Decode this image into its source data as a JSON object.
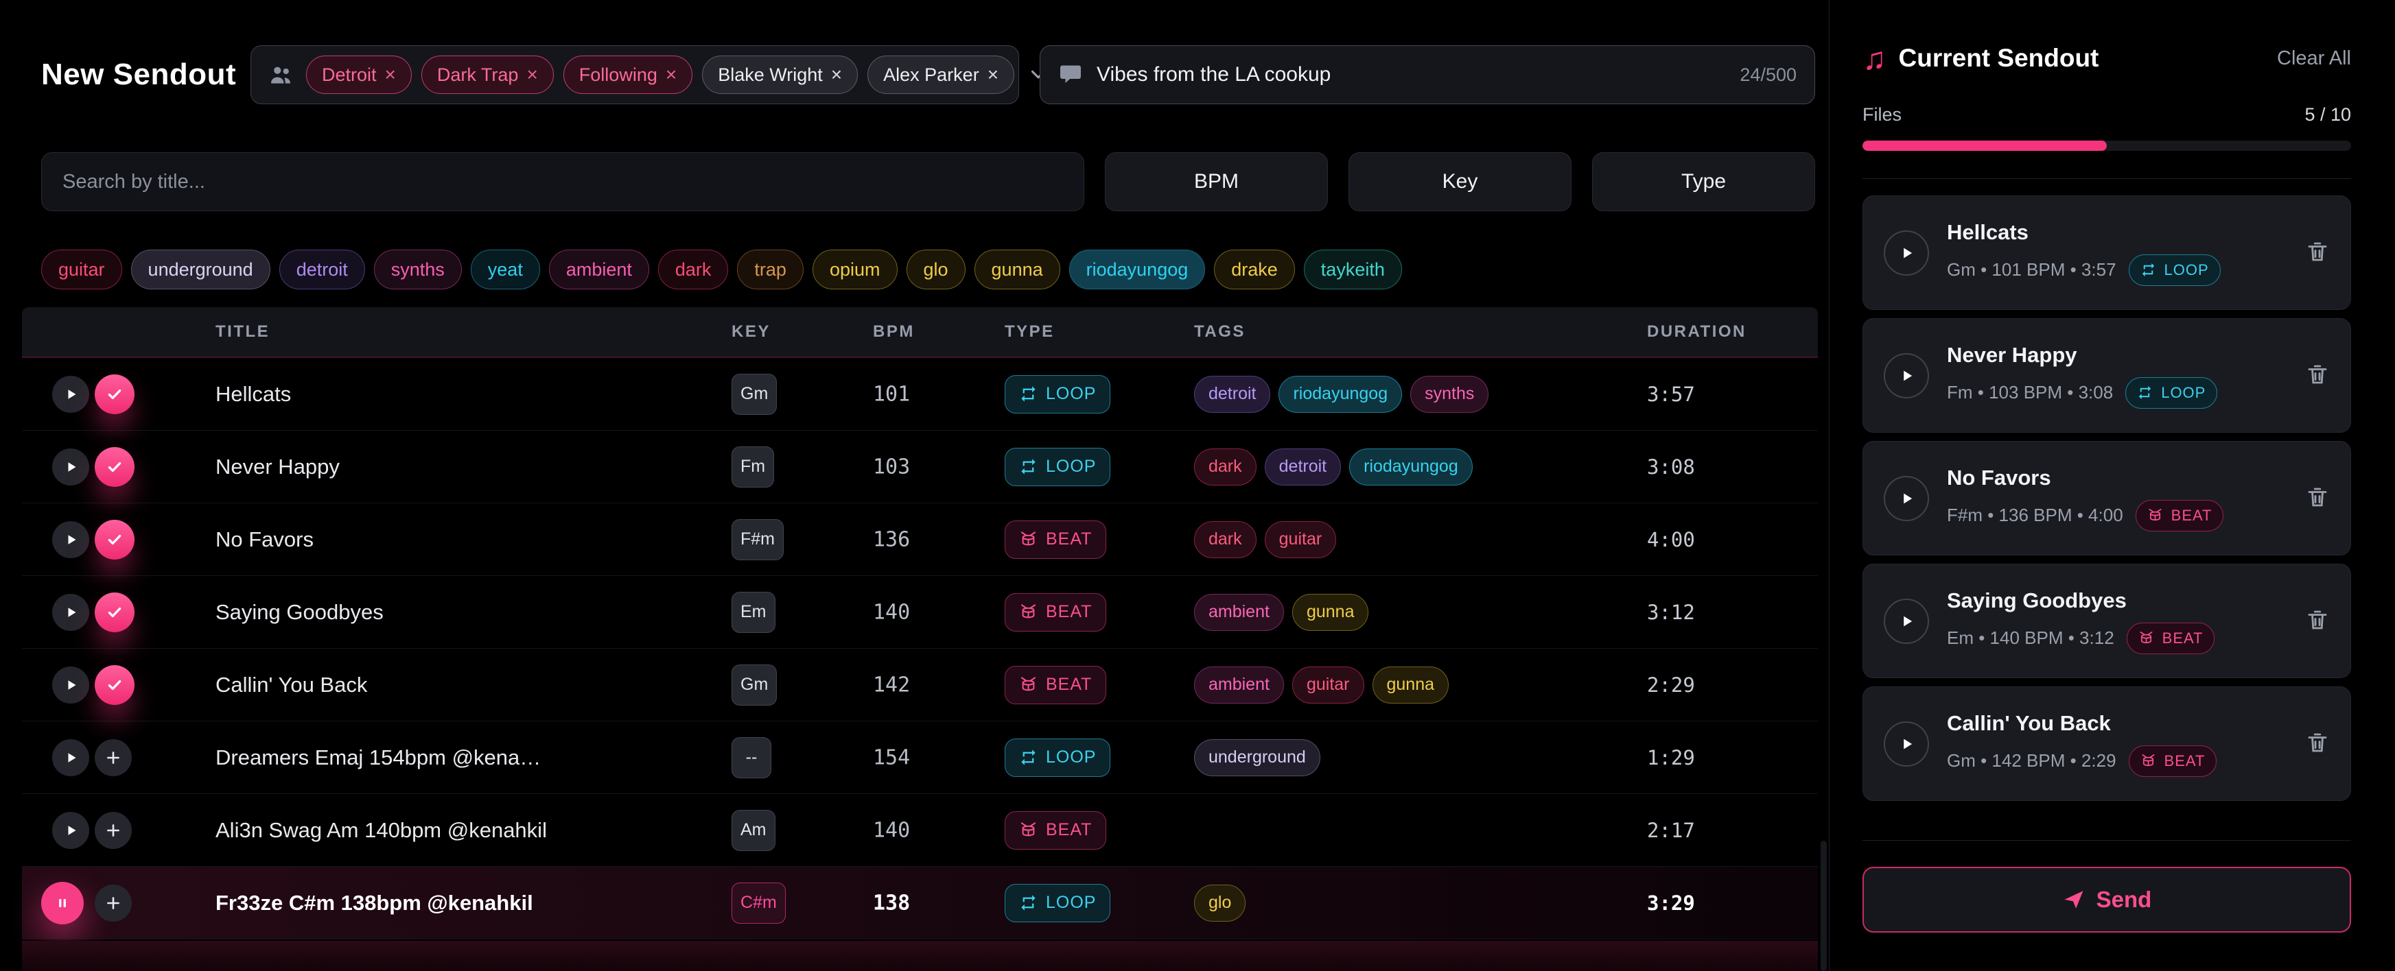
{
  "icons": {
    "close": "×",
    "note": "♫"
  },
  "header": {
    "title": "New Sendout",
    "recipients": {
      "chips": [
        {
          "label": "Detroit",
          "style": "pink"
        },
        {
          "label": "Dark Trap",
          "style": "pink"
        },
        {
          "label": "Following",
          "style": "pink"
        },
        {
          "label": "Blake Wright",
          "style": "gray"
        },
        {
          "label": "Alex Parker",
          "style": "gray"
        }
      ]
    },
    "message": {
      "value": "Vibes from the LA cookup",
      "counter": "24/500"
    }
  },
  "controls": {
    "search_placeholder": "Search by title...",
    "filter_buttons": [
      {
        "label": "BPM"
      },
      {
        "label": "Key"
      },
      {
        "label": "Type"
      }
    ]
  },
  "tag_filters": [
    {
      "label": "guitar",
      "color": "red"
    },
    {
      "label": "underground",
      "color": "lavender",
      "state": "selected"
    },
    {
      "label": "detroit",
      "color": "purple"
    },
    {
      "label": "synths",
      "color": "pink"
    },
    {
      "label": "yeat",
      "color": "cyan"
    },
    {
      "label": "ambient",
      "color": "pink"
    },
    {
      "label": "dark",
      "color": "red"
    },
    {
      "label": "trap",
      "color": "orange"
    },
    {
      "label": "opium",
      "color": "yellow"
    },
    {
      "label": "glo",
      "color": "yellow"
    },
    {
      "label": "gunna",
      "color": "yellow"
    },
    {
      "label": "riodayungog",
      "color": "cyan",
      "state": "selected"
    },
    {
      "label": "drake",
      "color": "yellow"
    },
    {
      "label": "taykeith",
      "color": "teal"
    }
  ],
  "table": {
    "columns": [
      "TITLE",
      "KEY",
      "BPM",
      "TYPE",
      "TAGS",
      "DURATION"
    ],
    "rows": [
      {
        "title": "Hellcats",
        "key": "Gm",
        "bpm": "101",
        "type": "LOOP",
        "type_class": "loop",
        "is_loop": true,
        "tags": [
          {
            "label": "detroit",
            "color": "purple"
          },
          {
            "label": "riodayungog",
            "color": "cyan"
          },
          {
            "label": "synths",
            "color": "pink"
          }
        ],
        "duration": "3:57",
        "added": true
      },
      {
        "title": "Never Happy",
        "key": "Fm",
        "bpm": "103",
        "type": "LOOP",
        "type_class": "loop",
        "is_loop": true,
        "tags": [
          {
            "label": "dark",
            "color": "red"
          },
          {
            "label": "detroit",
            "color": "purple"
          },
          {
            "label": "riodayungog",
            "color": "cyan"
          }
        ],
        "duration": "3:08",
        "added": true
      },
      {
        "title": "No Favors",
        "key": "F#m",
        "bpm": "136",
        "type": "BEAT",
        "type_class": "beat",
        "is_beat": true,
        "tags": [
          {
            "label": "dark",
            "color": "red"
          },
          {
            "label": "guitar",
            "color": "red"
          }
        ],
        "duration": "4:00",
        "added": true
      },
      {
        "title": "Saying Goodbyes",
        "key": "Em",
        "bpm": "140",
        "type": "BEAT",
        "type_class": "beat",
        "is_beat": true,
        "tags": [
          {
            "label": "ambient",
            "color": "pink"
          },
          {
            "label": "gunna",
            "color": "yellow"
          }
        ],
        "duration": "3:12",
        "added": true
      },
      {
        "title": "Callin' You Back",
        "key": "Gm",
        "bpm": "142",
        "type": "BEAT",
        "type_class": "beat",
        "is_beat": true,
        "tags": [
          {
            "label": "ambient",
            "color": "pink"
          },
          {
            "label": "guitar",
            "color": "red"
          },
          {
            "label": "gunna",
            "color": "yellow"
          }
        ],
        "duration": "2:29",
        "added": true
      },
      {
        "title": "Dreamers Emaj 154bpm @kena…",
        "key": "--",
        "bpm": "154",
        "type": "LOOP",
        "type_class": "loop",
        "is_loop": true,
        "tags": [
          {
            "label": "underground",
            "color": "lavender"
          }
        ],
        "duration": "1:29",
        "added": false
      },
      {
        "title": "Ali3n Swag Am 140bpm @kenahkil",
        "key": "Am",
        "bpm": "140",
        "type": "BEAT",
        "type_class": "beat",
        "is_beat": true,
        "tags": [],
        "duration": "2:17",
        "added": false
      },
      {
        "title": "Fr33ze C#m 138bpm @kenahkil",
        "key": "C#m",
        "key_class": "accent",
        "bpm": "138",
        "type": "LOOP",
        "type_class": "loop",
        "is_loop": true,
        "tags": [
          {
            "label": "glo",
            "color": "yellow"
          }
        ],
        "duration": "3:29",
        "added": false,
        "playing": true,
        "state": "playing"
      }
    ]
  },
  "sidebar": {
    "title": "Current Sendout",
    "clear_all": "Clear All",
    "files_label": "Files",
    "files_count": "5 / 10",
    "progress_pct": 50,
    "items": [
      {
        "title": "Hellcats",
        "meta": "Gm • 101 BPM • 3:57",
        "type": "LOOP",
        "type_class": "loop",
        "is_loop": true
      },
      {
        "title": "Never Happy",
        "meta": "Fm • 103 BPM • 3:08",
        "type": "LOOP",
        "type_class": "loop",
        "is_loop": true
      },
      {
        "title": "No Favors",
        "meta": "F#m • 136 BPM • 4:00",
        "type": "BEAT",
        "type_class": "beat",
        "is_beat": true
      },
      {
        "title": "Saying Goodbyes",
        "meta": "Em • 140 BPM • 3:12",
        "type": "BEAT",
        "type_class": "beat",
        "is_beat": true
      },
      {
        "title": "Callin' You Back",
        "meta": "Gm • 142 BPM • 2:29",
        "type": "BEAT",
        "type_class": "beat",
        "is_beat": true
      }
    ],
    "send_label": "Send"
  }
}
